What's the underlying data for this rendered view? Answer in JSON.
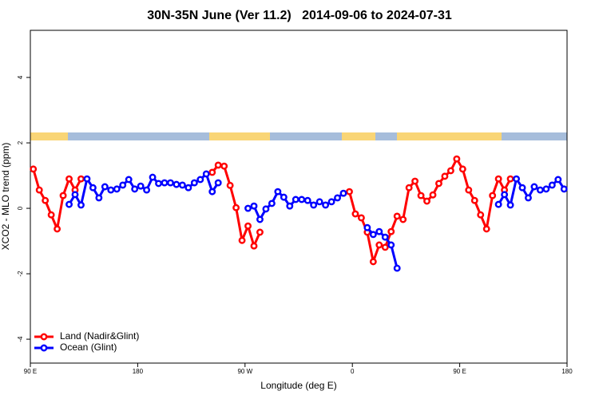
{
  "chart_data": {
    "type": "line",
    "title": "30N-35N June (Ver 11.2)   2014-09-06 to 2024-07-31",
    "x_label": "Longitude (deg E)",
    "y_label": "XCO2 - MLO trend (ppm)",
    "x": [
      92.5,
      97.5,
      102.5,
      107.5,
      112.5,
      117.5,
      122.5,
      127.5,
      132.5,
      137.5,
      142.5,
      147.5,
      152.5,
      157.5,
      162.5,
      167.5,
      172.5,
      177.5,
      182.5,
      187.5,
      192.5,
      197.5,
      202.5,
      207.5,
      212.5,
      217.5,
      222.5,
      227.5,
      232.5,
      237.5,
      242.5,
      247.5,
      252.5,
      257.5,
      262.5,
      267.5,
      272.5,
      277.5,
      282.5,
      287.5,
      292.5,
      297.5,
      302.5,
      307.5,
      312.5,
      317.5,
      322.5,
      327.5,
      332.5,
      337.5,
      342.5,
      347.5,
      352.5,
      357.5,
      362.5,
      367.5,
      372.5,
      377.5,
      382.5,
      387.5,
      392.5,
      397.5,
      402.5,
      407.5,
      412.5,
      417.5,
      422.5,
      427.5,
      432.5,
      437.5,
      442.5,
      447.5,
      452.5,
      457.5,
      462.5,
      467.5,
      472.5,
      477.5,
      482.5,
      487.5,
      492.5,
      497.5,
      502.5,
      507.5,
      512.5,
      517.5,
      522.5,
      527.5,
      532.5,
      537.5
    ],
    "series": [
      {
        "name": "Land (Nadir&Glint)",
        "color": "#ff0000",
        "values": [
          1.2,
          0.56,
          0.24,
          -0.2,
          -0.63,
          0.39,
          0.9,
          0.56,
          0.9,
          null,
          null,
          null,
          null,
          null,
          null,
          null,
          null,
          null,
          null,
          null,
          null,
          null,
          null,
          null,
          null,
          null,
          null,
          null,
          null,
          null,
          1.1,
          1.32,
          1.29,
          0.7,
          0.02,
          -0.98,
          -0.54,
          -1.15,
          -0.73,
          null,
          null,
          null,
          null,
          null,
          null,
          null,
          null,
          null,
          null,
          null,
          null,
          null,
          null,
          0.51,
          -0.17,
          -0.29,
          -0.73,
          -1.63,
          -1.12,
          -1.19,
          -0.71,
          -0.24,
          -0.34,
          0.63,
          0.83,
          0.39,
          0.22,
          0.41,
          0.76,
          0.98,
          1.15,
          1.51,
          1.2,
          0.56,
          0.24,
          -0.2,
          -0.63,
          0.39,
          0.9,
          0.56,
          0.9,
          null,
          null,
          null,
          null,
          null,
          null,
          null,
          null,
          null
        ]
      },
      {
        "name": "Ocean (Glint)",
        "color": "#0000ff",
        "values": [
          null,
          null,
          null,
          null,
          null,
          null,
          0.12,
          0.42,
          0.1,
          0.9,
          0.63,
          0.32,
          0.66,
          0.56,
          0.59,
          0.71,
          0.88,
          0.59,
          0.68,
          0.56,
          0.95,
          0.76,
          0.78,
          0.78,
          0.73,
          0.71,
          0.63,
          0.78,
          0.88,
          1.05,
          0.51,
          0.78,
          null,
          null,
          null,
          null,
          0.0,
          0.07,
          -0.34,
          -0.02,
          0.15,
          0.51,
          0.34,
          0.07,
          0.27,
          0.27,
          0.24,
          0.1,
          0.2,
          0.1,
          0.2,
          0.32,
          0.46,
          null,
          null,
          null,
          -0.59,
          -0.8,
          -0.71,
          -0.88,
          -1.12,
          -1.83,
          null,
          null,
          null,
          null,
          null,
          null,
          null,
          null,
          null,
          null,
          null,
          null,
          null,
          null,
          null,
          null,
          0.12,
          0.42,
          0.1,
          0.9,
          0.63,
          0.32,
          0.66,
          0.56,
          0.59,
          0.71,
          0.88,
          0.59
        ]
      }
    ],
    "xlim": [
      90,
      540
    ],
    "xticks": [
      {
        "value": 90,
        "label": "90 E"
      },
      180,
      {
        "value": 270,
        "label": "90 W"
      },
      {
        "value": 360,
        "label": "0"
      },
      {
        "value": 450,
        "label": "90 E"
      },
      {
        "value": 540,
        "label": "180"
      }
    ],
    "ylim": [
      -4.73,
      5.44
    ],
    "yticks": [
      -4,
      -2,
      0,
      2,
      4
    ],
    "legend": "bottom-left",
    "grid": false
  }
}
